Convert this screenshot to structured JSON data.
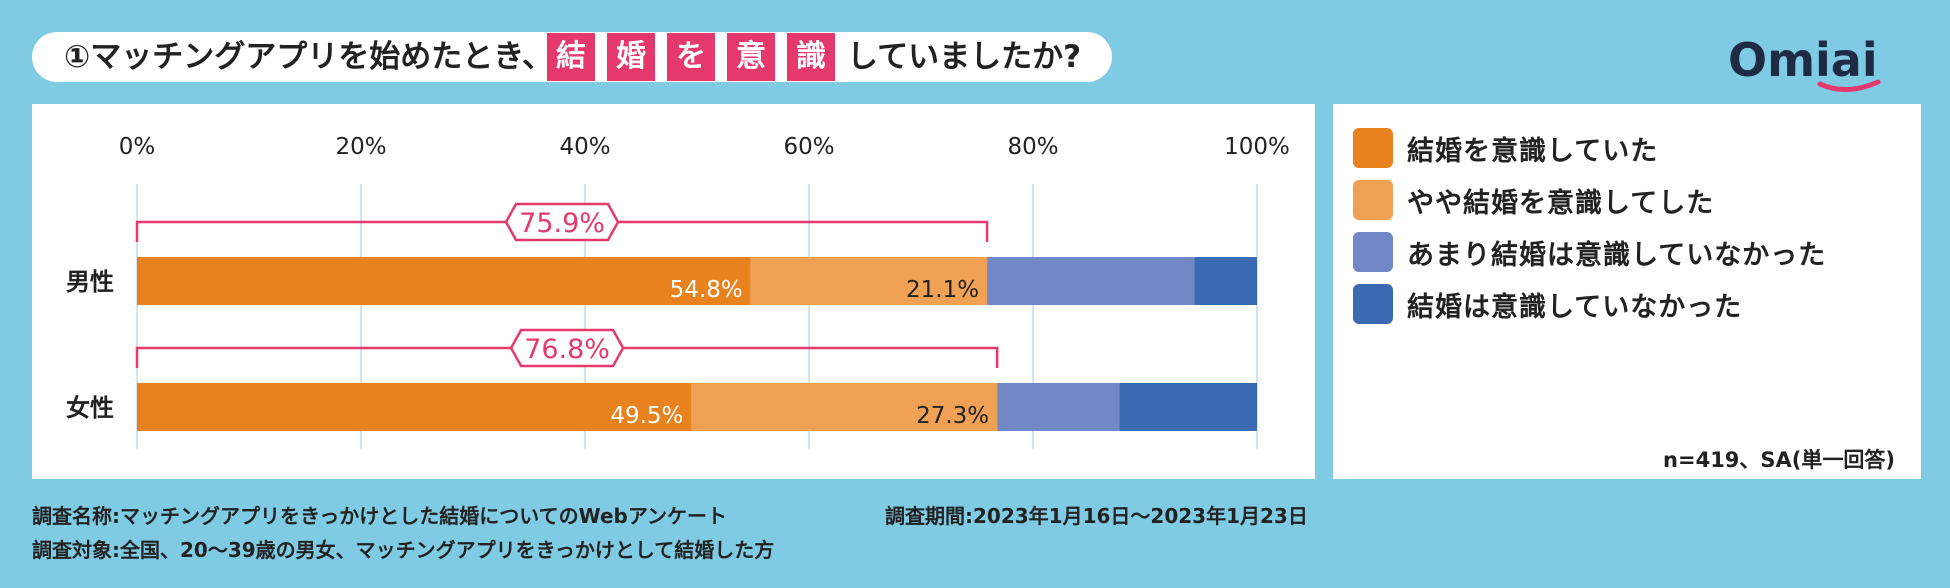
{
  "title": {
    "prefix": "①マッチングアプリを始めたとき、",
    "keywords": [
      "結",
      "婚",
      "を",
      "意",
      "識"
    ],
    "suffix": "していましたか?"
  },
  "brand": "Omiai",
  "colors": {
    "dark_orange": "#e8821f",
    "light_orange": "#f0a154",
    "periwinkle": "#7287c5",
    "blue": "#3a6ab2",
    "pink": "#e5386c"
  },
  "chart_data": {
    "type": "bar",
    "orientation": "horizontal",
    "stacked": true,
    "x_ticks": [
      "0%",
      "20%",
      "40%",
      "60%",
      "80%",
      "100%"
    ],
    "xlim": [
      0,
      100
    ],
    "categories": [
      "男性",
      "女性"
    ],
    "series": [
      {
        "name": "結婚を意識していた",
        "values": [
          54.8,
          49.5
        ],
        "labels": [
          "54.8%",
          "49.5%"
        ]
      },
      {
        "name": "やや結婚を意識してした",
        "values": [
          21.1,
          27.3
        ],
        "labels": [
          "21.1%",
          "27.3%"
        ]
      },
      {
        "name": "あまり結婚は意識していなかった",
        "values": [
          18.5,
          10.9
        ]
      },
      {
        "name": "結婚は意識していなかった",
        "values": [
          5.6,
          12.3
        ]
      }
    ],
    "brackets": [
      {
        "category": "男性",
        "value": 75.9,
        "label": "75.9%"
      },
      {
        "category": "女性",
        "value": 76.8,
        "label": "76.8%"
      }
    ],
    "legend_position": "right"
  },
  "legend": {
    "items": [
      "結婚を意識していた",
      "やや結婚を意識してした",
      "あまり結婚は意識していなかった",
      "結婚は意識していなかった"
    ],
    "sample_note": "n=419、SA(単一回答)"
  },
  "footer": {
    "survey_name": "調査名称:マッチングアプリをきっかけとした結婚についてのWebアンケート",
    "survey_target": "調査対象:全国、20〜39歳の男女、マッチングアプリをきっかけとして結婚した方",
    "survey_period": "調査期間:2023年1月16日〜2023年1月23日"
  }
}
